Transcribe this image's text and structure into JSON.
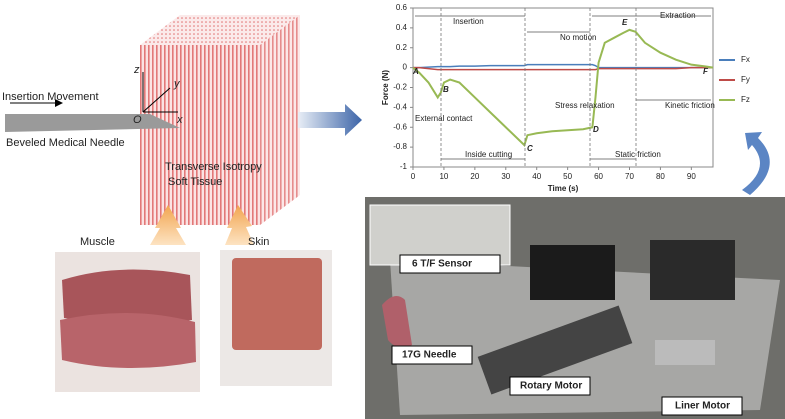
{
  "diagram": {
    "needle": {
      "movement": "Insertion Movement",
      "label": "Beveled Medical Needle"
    },
    "axes": {
      "z": "z",
      "y": "y",
      "x": "x",
      "origin": "O"
    },
    "tissue": [
      "Transverse Isotropy",
      "Soft Tissue"
    ],
    "samples": [
      "Muscle",
      "Skin"
    ],
    "setup": [
      "6  T/F Sensor",
      "17G Needle",
      "Rotary Motor",
      "Liner Motor"
    ]
  },
  "chart_data": {
    "type": "line",
    "x_label": "Time (s)",
    "y_label": "Force (N)",
    "x": [
      0,
      2,
      5,
      8,
      9,
      10,
      12,
      15,
      20,
      25,
      30,
      35,
      36,
      37,
      40,
      45,
      50,
      55,
      58,
      59,
      60,
      62,
      65,
      68,
      70,
      72,
      75,
      80,
      85,
      90,
      95,
      97
    ],
    "series": [
      {
        "name": "Fx",
        "color": "#4a7ebb",
        "values": [
          0,
          0,
          0.005,
          0.01,
          0.01,
          0.01,
          0.01,
          0.015,
          0.015,
          0.02,
          0.02,
          0.02,
          0.02,
          0.03,
          0.03,
          0.03,
          0.03,
          0.03,
          0.03,
          0.02,
          0,
          0,
          0,
          0,
          0,
          0,
          0,
          0,
          0,
          0,
          0,
          0
        ]
      },
      {
        "name": "Fy",
        "color": "#be4b48",
        "values": [
          0,
          0,
          -0.01,
          -0.02,
          -0.02,
          -0.02,
          -0.02,
          -0.02,
          -0.02,
          -0.02,
          -0.02,
          -0.02,
          -0.02,
          -0.02,
          -0.02,
          -0.02,
          -0.02,
          -0.02,
          -0.02,
          -0.02,
          -0.01,
          -0.01,
          -0.01,
          -0.01,
          -0.01,
          -0.01,
          -0.01,
          -0.01,
          -0.01,
          0,
          0,
          0
        ]
      },
      {
        "name": "Fz",
        "color": "#98b954",
        "values": [
          0,
          -0.05,
          -0.15,
          -0.3,
          -0.25,
          -0.15,
          -0.12,
          -0.15,
          -0.3,
          -0.45,
          -0.6,
          -0.75,
          -0.78,
          -0.68,
          -0.66,
          -0.64,
          -0.63,
          -0.62,
          -0.6,
          -0.3,
          0.05,
          0.25,
          0.3,
          0.35,
          0.38,
          0.36,
          0.25,
          0.15,
          0.08,
          0.03,
          0.01,
          0
        ]
      }
    ],
    "xlim": [
      0,
      97
    ],
    "xticks": [
      0,
      10,
      20,
      30,
      40,
      50,
      60,
      70,
      80,
      90
    ],
    "ylim": [
      -1,
      0.6
    ],
    "yticks": [
      -1,
      -0.8,
      -0.6,
      -0.4,
      -0.2,
      0,
      0.2,
      0.4,
      0.6
    ],
    "legend": "right",
    "annotations": [
      "Insertion",
      "No motion",
      "Extraction",
      "External contact",
      "Inside cutting",
      "Stress relaxation",
      "Static friction",
      "Kinetic friction",
      "A",
      "B",
      "C",
      "D",
      "E",
      "F"
    ]
  }
}
